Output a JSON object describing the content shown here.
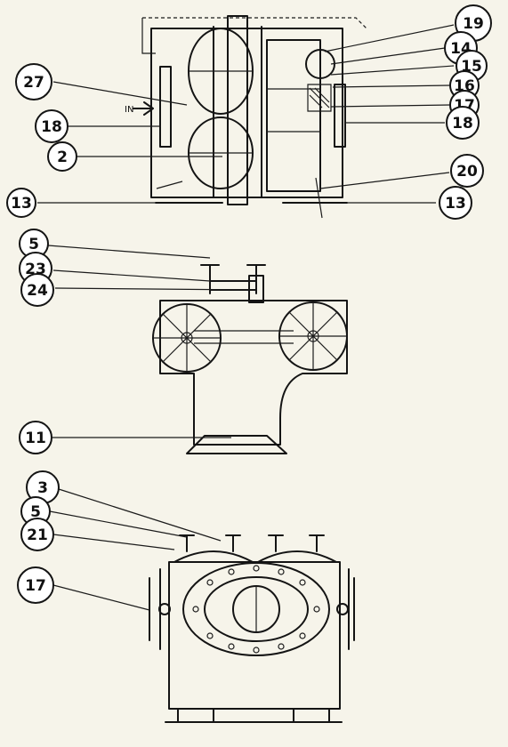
{
  "callouts": {
    "top_left": [
      "27",
      "18",
      "2",
      "13"
    ],
    "top_right": [
      "19",
      "14",
      "15",
      "16",
      "17",
      "18",
      "20",
      "13"
    ],
    "middle": [
      "5",
      "23",
      "24",
      "11"
    ],
    "bottom": [
      "3",
      "5",
      "21",
      "17"
    ]
  },
  "inflow_label": "IN"
}
